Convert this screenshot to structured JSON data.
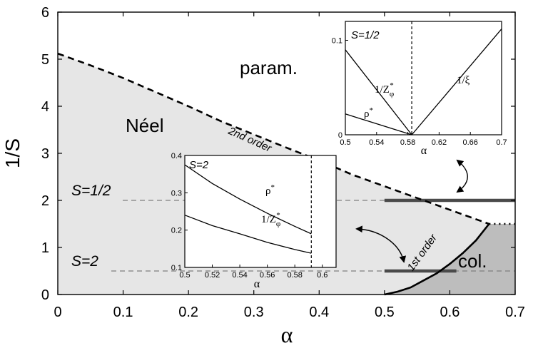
{
  "chart_data": {
    "type": "line",
    "main": {
      "xlabel": "α",
      "ylabel": "1/S",
      "xlim": [
        0,
        0.7
      ],
      "ylim": [
        0,
        6
      ],
      "xticks": [
        "0",
        "0.1",
        "0.2",
        "0.3",
        "0.4",
        "0.5",
        "0.6",
        "0.7"
      ],
      "yticks": [
        "0",
        "1",
        "2",
        "3",
        "4",
        "5",
        "6"
      ],
      "grid": false,
      "regions": {
        "neel_label": "Néel",
        "param_label": "param.",
        "col_label": "col."
      },
      "second_order_line": {
        "label": "2nd order",
        "x": [
          0,
          0.05,
          0.1,
          0.15,
          0.2,
          0.25,
          0.3,
          0.35,
          0.4,
          0.45,
          0.5,
          0.55,
          0.6,
          0.66
        ],
        "y": [
          5.12,
          4.87,
          4.6,
          4.3,
          4.0,
          3.68,
          3.4,
          3.12,
          2.85,
          2.55,
          2.3,
          2.05,
          1.8,
          1.5
        ]
      },
      "first_order_line": {
        "label": "1st order",
        "x": [
          0.5,
          0.52,
          0.54,
          0.56,
          0.58,
          0.6,
          0.62,
          0.64,
          0.66
        ],
        "y": [
          0,
          0.06,
          0.15,
          0.3,
          0.45,
          0.65,
          0.88,
          1.15,
          1.5
        ]
      },
      "dotted_line": {
        "x": [
          0.66,
          0.7
        ],
        "y": [
          1.5,
          1.5
        ]
      },
      "s_lines": [
        {
          "label": "S=1/2",
          "y": 2,
          "bar_x": [
            0.5,
            0.7
          ]
        },
        {
          "label": "S=2",
          "y": 0.5,
          "bar_x": [
            0.5,
            0.61
          ]
        }
      ]
    },
    "inset_top": {
      "label": "S=1/2",
      "xlabel": "α",
      "xlim": [
        0.5,
        0.7
      ],
      "ylim": [
        0,
        0.12
      ],
      "xticks": [
        "0.5",
        "0.54",
        "0.58",
        "0.62",
        "0.66",
        "0.7"
      ],
      "yticks": [
        "0",
        "0.1"
      ],
      "critical_x": 0.585,
      "series": [
        {
          "name": "1/Z",
          "name_sub": "φ",
          "name_sup": "*",
          "x": [
            0.5,
            0.585
          ],
          "y": [
            0.09,
            0
          ]
        },
        {
          "name": "ρ",
          "name_sup": "*",
          "x": [
            0.5,
            0.585
          ],
          "y": [
            0.022,
            0
          ]
        },
        {
          "name": "1/ξ",
          "x": [
            0.585,
            0.7
          ],
          "y": [
            0,
            0.112
          ]
        }
      ]
    },
    "inset_bottom": {
      "label": "S=2",
      "xlabel": "α",
      "xlim": [
        0.5,
        0.61
      ],
      "ylim": [
        0.1,
        0.4
      ],
      "xticks": [
        "0.5",
        "0.52",
        "0.54",
        "0.56",
        "0.58",
        "0.6"
      ],
      "yticks": [
        "0.1",
        "0.2",
        "0.3",
        "0.4"
      ],
      "critical_x": 0.592,
      "series": [
        {
          "name": "ρ",
          "name_sup": "*",
          "x": [
            0.5,
            0.52,
            0.54,
            0.56,
            0.58,
            0.592
          ],
          "y": [
            0.375,
            0.325,
            0.283,
            0.245,
            0.21,
            0.19
          ]
        },
        {
          "name": "1/Z",
          "name_sub": "φ",
          "name_sup": "*",
          "x": [
            0.5,
            0.52,
            0.54,
            0.56,
            0.58,
            0.592
          ],
          "y": [
            0.24,
            0.212,
            0.19,
            0.167,
            0.148,
            0.138
          ]
        }
      ]
    }
  }
}
